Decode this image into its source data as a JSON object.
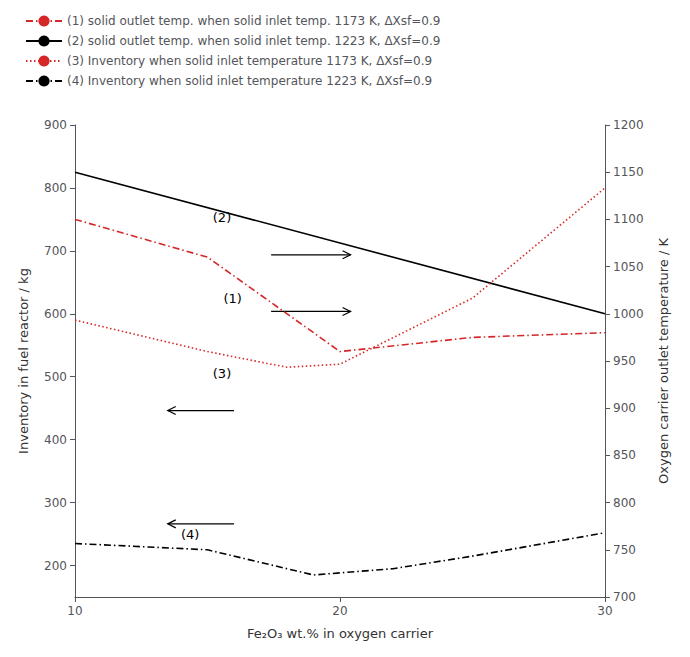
{
  "chart_data": {
    "type": "line",
    "xlabel": "Fe₂O₃ wt.% in oxygen carrier",
    "ylabel": "Inventory in fuel reactor / kg",
    "y2label": "Oxygen carrier outlet temperature / K",
    "xlim": [
      10,
      30
    ],
    "xticks": [
      10,
      20,
      30
    ],
    "ylim": [
      150,
      900
    ],
    "yticks": [
      200,
      300,
      400,
      500,
      600,
      700,
      800,
      900
    ],
    "y2lim": [
      700,
      1200
    ],
    "y2ticks": [
      700,
      750,
      800,
      850,
      900,
      950,
      1000,
      1050,
      1100,
      1150,
      1200
    ],
    "grid": false,
    "legend": "upper left",
    "annotations": [
      "(2)",
      "(1)",
      "(3)",
      "(4)"
    ],
    "series": [
      {
        "name": "(1) solid outlet temp. when solid inlet temp. 1173 K, ΔXsf=0.9",
        "color": "#d62728",
        "line_style": "dashdot",
        "axis": "y2",
        "x": [
          10,
          15,
          20,
          25,
          30
        ],
        "values": [
          1100,
          1060,
          960,
          975,
          980
        ]
      },
      {
        "name": "(2) solid outlet temp. when solid inlet temp. 1223 K, ΔXsf=0.9",
        "color": "#000000",
        "line_style": "solid",
        "axis": "y2",
        "x": [
          10,
          30
        ],
        "values": [
          1150,
          1000
        ]
      },
      {
        "name": "(3) Inventory when solid inlet temperature 1173 K, ΔXsf=0.9",
        "color": "#d62728",
        "line_style": "dotted",
        "axis": "y",
        "x": [
          10,
          15,
          18,
          20,
          25,
          30
        ],
        "values": [
          590,
          540,
          515,
          520,
          625,
          800
        ]
      },
      {
        "name": "(4) Inventory when solid inlet temperature 1223 K, ΔXsf=0.9",
        "color": "#000000",
        "line_style": "dashdot",
        "axis": "y",
        "x": [
          10,
          15,
          17,
          19,
          22,
          25,
          30
        ],
        "values": [
          235,
          225,
          205,
          185,
          195,
          215,
          252
        ]
      }
    ]
  }
}
